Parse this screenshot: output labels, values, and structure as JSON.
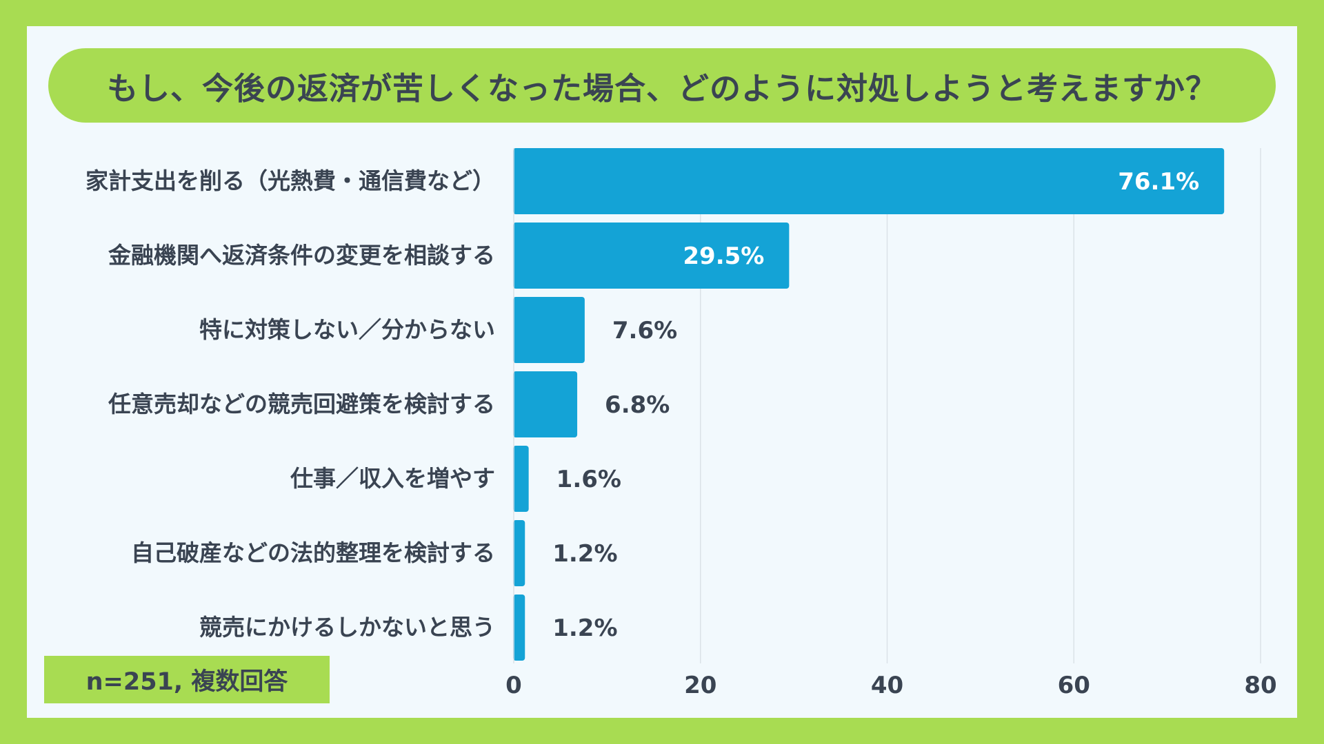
{
  "title": "もし、今後の返済が苦しくなった場合、どのように対処しようと考えますか？",
  "note": "n=251, 複数回答",
  "colors": {
    "background": "#a8dc52",
    "panel": "#f2f9fd",
    "bar": "#14a3d6",
    "text": "#3a4452",
    "label_inside": "#ffffff",
    "grid": "#dbe2e8"
  },
  "chart_data": {
    "type": "bar",
    "orientation": "horizontal",
    "categories": [
      "家計支出を削る（光熱費・通信費など）",
      "金融機関へ返済条件の変更を相談する",
      "特に対策しない／分からない",
      "任意売却などの競売回避策を検討する",
      "仕事／収入を増やす",
      "自己破産などの法的整理を検討する",
      "競売にかけるしかないと思う"
    ],
    "values": [
      76.1,
      29.5,
      7.6,
      6.8,
      1.6,
      1.2,
      1.2
    ],
    "value_labels": [
      "76.1%",
      "29.5%",
      "7.6%",
      "6.8%",
      "1.6%",
      "1.2%",
      "1.2%"
    ],
    "xlim": [
      0,
      80
    ],
    "xticks": [
      0,
      20,
      40,
      60,
      80
    ],
    "tick_labels": [
      "0",
      "20",
      "40",
      "60",
      "80"
    ],
    "grid": true
  }
}
